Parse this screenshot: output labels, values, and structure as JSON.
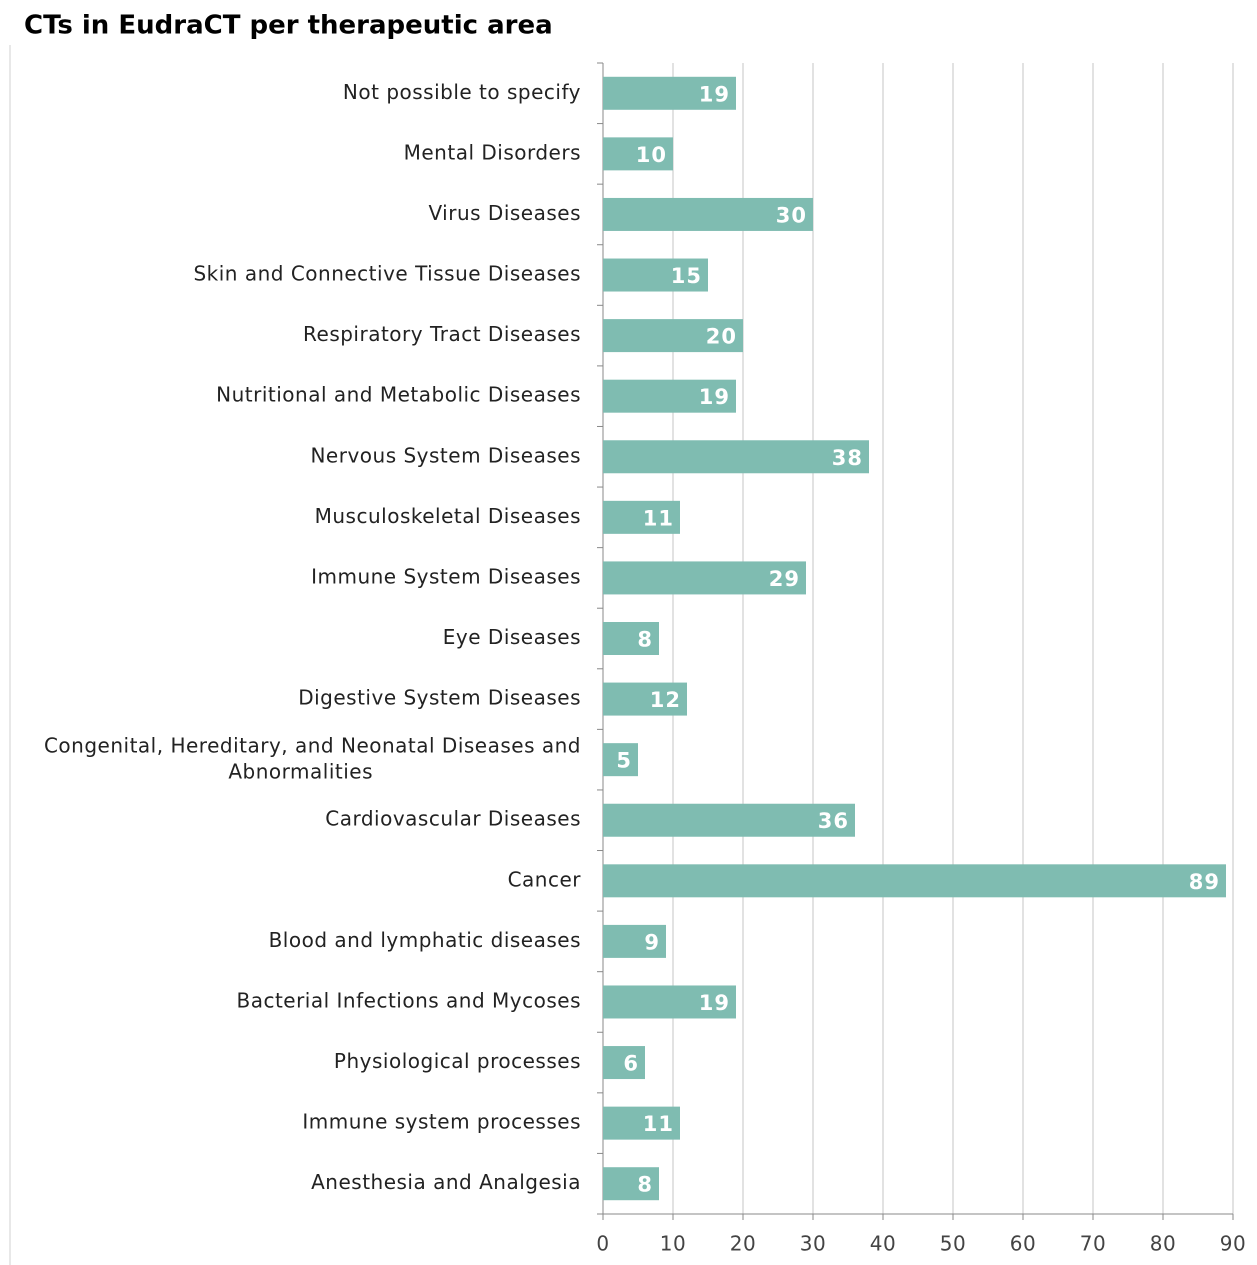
{
  "chart_data": {
    "type": "hbar",
    "title": "CTs in EudraCT per therapeutic area",
    "categories": [
      "Not possible to specify",
      "Mental Disorders",
      "Virus Diseases",
      "Skin and Connective Tissue Diseases",
      "Respiratory Tract Diseases",
      "Nutritional and Metabolic Diseases",
      "Nervous System Diseases",
      "Musculoskeletal Diseases",
      "Immune System Diseases",
      "Eye Diseases",
      "Digestive System Diseases",
      "Congenital, Hereditary, and Neonatal Diseases and Abnormalities",
      "Cardiovascular Diseases",
      "Cancer",
      "Blood and lymphatic diseases",
      "Bacterial Infections and Mycoses",
      "Physiological processes",
      "Immune system processes",
      "Anesthesia and Analgesia"
    ],
    "values": [
      19,
      10,
      30,
      15,
      20,
      19,
      38,
      11,
      29,
      8,
      12,
      5,
      36,
      89,
      9,
      19,
      6,
      11,
      8
    ],
    "color": "#7fbcb1",
    "xlim": [
      0,
      90
    ],
    "xticks": [
      0,
      10,
      20,
      30,
      40,
      50,
      60,
      70,
      80,
      90
    ],
    "grid": true
  }
}
